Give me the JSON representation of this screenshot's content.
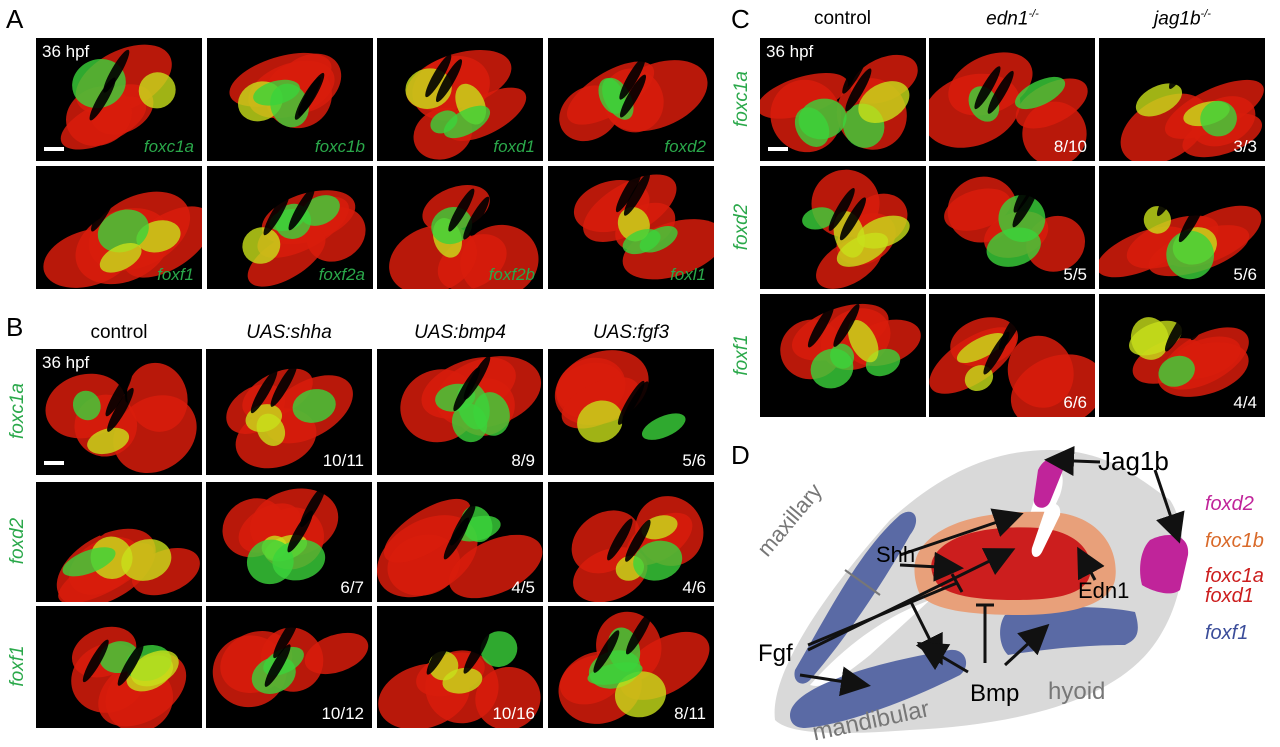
{
  "panel_a": {
    "letter": "A",
    "stage": "36 hpf",
    "genes": [
      "foxc1a",
      "foxc1b",
      "foxd1",
      "foxd2",
      "foxf1",
      "foxf2a",
      "foxf2b",
      "foxl1"
    ]
  },
  "panel_b": {
    "letter": "B",
    "stage": "36 hpf",
    "columns": [
      "control",
      "UAS:shha",
      "UAS:bmp4",
      "UAS:fgf3"
    ],
    "rows": [
      "foxc1a",
      "foxd2",
      "foxf1"
    ],
    "counts": [
      [
        "",
        "10/11",
        "8/9",
        "5/6"
      ],
      [
        "",
        "6/7",
        "4/5",
        "4/6"
      ],
      [
        "",
        "10/12",
        "10/16",
        "8/11"
      ]
    ]
  },
  "panel_c": {
    "letter": "C",
    "stage": "36 hpf",
    "col_control": "control",
    "col_edn1": "edn1",
    "col_jag1b": "jag1b",
    "mutant_sup": "-/-",
    "rows": [
      "foxc1a",
      "foxd2",
      "foxf1"
    ],
    "counts": [
      [
        "",
        "8/10",
        "3/3"
      ],
      [
        "",
        "5/5",
        "5/6"
      ],
      [
        "",
        "6/6",
        "4/4"
      ]
    ]
  },
  "panel_d": {
    "letter": "D",
    "labels": {
      "jag1b": "Jag1b",
      "shh": "Shh",
      "edn1": "Edn1",
      "fgf": "Fgf",
      "bmp": "Bmp",
      "maxillary": "maxillary",
      "mandibular": "mandibular",
      "hyoid": "hyoid"
    },
    "legend": [
      {
        "text": "foxd2",
        "color": "#c0249a"
      },
      {
        "text": "foxc1b",
        "color": "#d96a2a"
      },
      {
        "text": "foxc1a",
        "color": "#cc1e1e"
      },
      {
        "text": "foxd1",
        "color": "#cc1e1e"
      },
      {
        "text": "foxf1",
        "color": "#3b4d9a"
      }
    ]
  }
}
